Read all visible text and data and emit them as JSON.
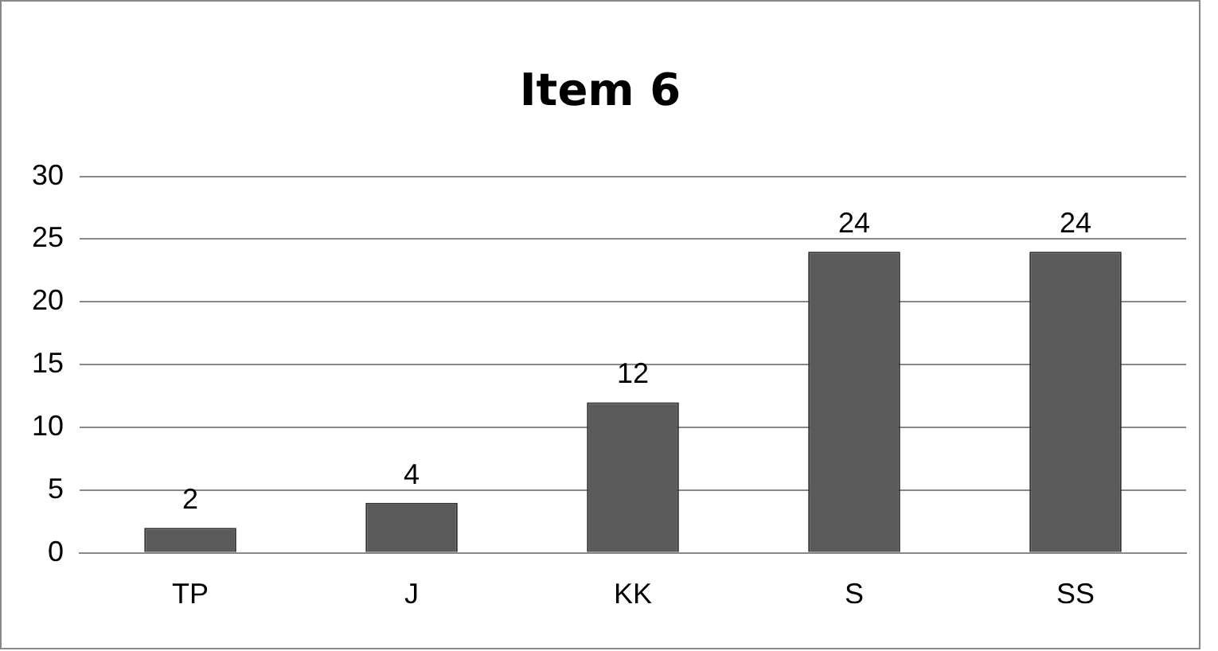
{
  "chart_data": {
    "type": "bar",
    "title": "Item 6",
    "categories": [
      "TP",
      "J",
      "KK",
      "S",
      "SS"
    ],
    "values": [
      2,
      4,
      12,
      24,
      24
    ],
    "color": "#5a5a5a",
    "ylim": [
      0,
      30
    ],
    "yticks": [
      0,
      5,
      10,
      15,
      20,
      25,
      30
    ],
    "grid": "y",
    "data_labels": true,
    "legend": false
  }
}
